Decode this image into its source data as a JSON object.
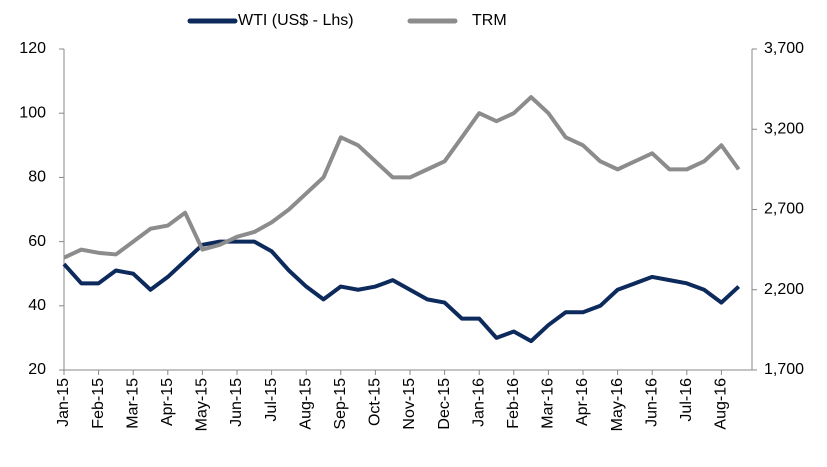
{
  "chart_data": {
    "type": "line",
    "categories": [
      "Jan-15",
      null,
      "Feb-15",
      null,
      "Mar-15",
      null,
      "Apr-15",
      null,
      "May-15",
      null,
      "Jun-15",
      null,
      "Jul-15",
      null,
      "Aug-15",
      null,
      "Sep-15",
      null,
      "Oct-15",
      null,
      "Nov-15",
      null,
      "Dec-15",
      null,
      "Jan-16",
      null,
      "Feb-16",
      null,
      "Mar-16",
      null,
      "Apr-16",
      null,
      "May-16",
      null,
      "Jun-16",
      null,
      "Jul-16",
      null,
      "Aug-16",
      null
    ],
    "series": [
      {
        "name": "WTI (US$ - Lhs)",
        "color": "#0d2a5c",
        "axis": "y",
        "values": [
          53,
          47,
          47,
          51,
          50,
          45,
          49,
          54,
          59,
          60,
          60,
          60,
          57,
          51,
          46,
          42,
          46,
          45,
          46,
          48,
          45,
          42,
          41,
          36,
          36,
          30,
          32,
          29,
          34,
          38,
          38,
          40,
          45,
          47,
          49,
          48,
          47,
          45,
          41,
          46
        ]
      },
      {
        "name": "TRM",
        "color": "#8c8c8c",
        "axis": "y2",
        "values": [
          2400,
          2450,
          2430,
          2420,
          2500,
          2580,
          2600,
          2680,
          2450,
          2480,
          2530,
          2560,
          2620,
          2700,
          2800,
          2900,
          3150,
          3100,
          3000,
          2900,
          2900,
          2950,
          3000,
          3150,
          3300,
          3250,
          3300,
          3400,
          3300,
          3150,
          3100,
          3000,
          2950,
          3000,
          3050,
          2950,
          2950,
          3000,
          3100,
          2950
        ]
      }
    ],
    "ylim": [
      20,
      120
    ],
    "yticks": [
      20,
      40,
      60,
      80,
      100,
      120
    ],
    "y2lim": [
      1700,
      3700
    ],
    "y2ticks": [
      {
        "value": 1700,
        "label": "1,700"
      },
      {
        "value": 2200,
        "label": "2,200"
      },
      {
        "value": 2700,
        "label": "2,700"
      },
      {
        "value": 3200,
        "label": "3,200"
      },
      {
        "value": 3700,
        "label": "3,700"
      }
    ],
    "legend": "top"
  }
}
